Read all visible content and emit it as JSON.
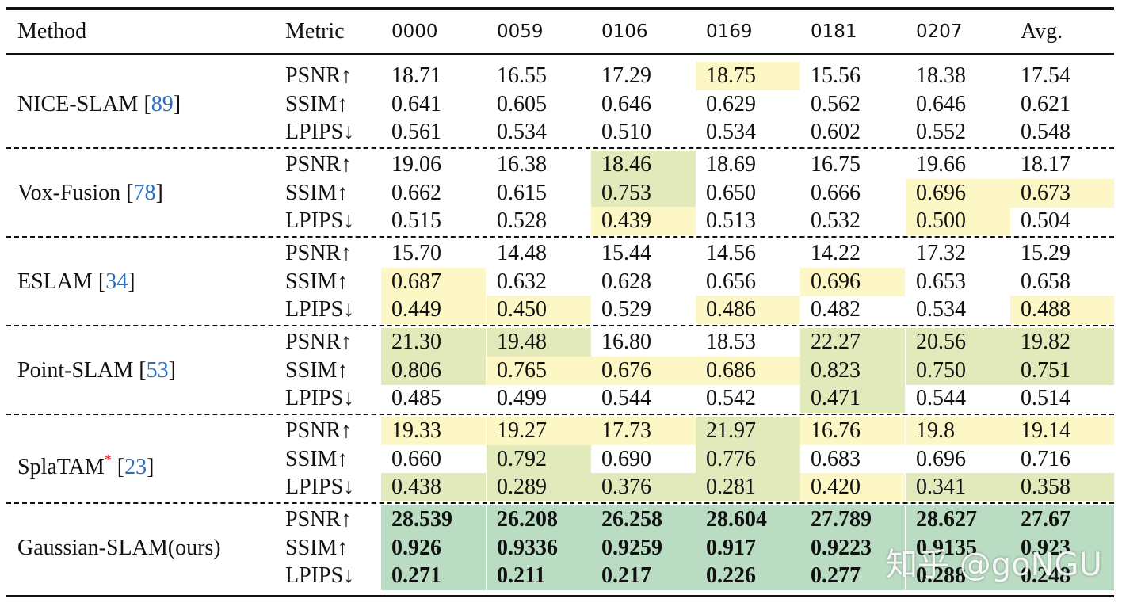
{
  "table": {
    "header": [
      "Method",
      "Metric",
      "0000",
      "0059",
      "0106",
      "0169",
      "0181",
      "0207",
      "Avg."
    ],
    "ref_open": "[",
    "ref_close": "]",
    "groups": [
      {
        "method": "NICE-SLAM",
        "ref": "89",
        "bold": false,
        "rows": [
          {
            "metric": "PSNR↑",
            "cells": [
              "18.71",
              "16.55",
              "17.29",
              "18.75",
              "15.56",
              "18.38",
              "17.54"
            ],
            "fills": [
              null,
              null,
              null,
              "#fdf7c5",
              null,
              null,
              null
            ]
          },
          {
            "metric": "SSIM↑",
            "cells": [
              "0.641",
              "0.605",
              "0.646",
              "0.629",
              "0.562",
              "0.646",
              "0.621"
            ],
            "fills": [
              null,
              null,
              null,
              null,
              null,
              null,
              null
            ]
          },
          {
            "metric": "LPIPS↓",
            "cells": [
              "0.561",
              "0.534",
              "0.510",
              "0.534",
              "0.602",
              "0.552",
              "0.548"
            ],
            "fills": [
              null,
              null,
              null,
              null,
              null,
              null,
              null
            ]
          }
        ]
      },
      {
        "method": "Vox-Fusion",
        "ref": "78",
        "bold": false,
        "rows": [
          {
            "metric": "PSNR↑",
            "cells": [
              "19.06",
              "16.38",
              "18.46",
              "18.69",
              "16.75",
              "19.66",
              "18.17"
            ],
            "fills": [
              null,
              null,
              "#e2e9ba",
              null,
              null,
              null,
              null
            ]
          },
          {
            "metric": "SSIM↑",
            "cells": [
              "0.662",
              "0.615",
              "0.753",
              "0.650",
              "0.666",
              "0.696",
              "0.673"
            ],
            "fills": [
              null,
              null,
              "#e2e9ba",
              null,
              null,
              "#fdf7c5",
              "#fdf7c5"
            ]
          },
          {
            "metric": "LPIPS↓",
            "cells": [
              "0.515",
              "0.528",
              "0.439",
              "0.513",
              "0.532",
              "0.500",
              "0.504"
            ],
            "fills": [
              null,
              null,
              "#fdf7c5",
              null,
              null,
              "#fdf7c5",
              null
            ]
          }
        ]
      },
      {
        "method": "ESLAM",
        "ref": "34",
        "bold": false,
        "rows": [
          {
            "metric": "PSNR↑",
            "cells": [
              "15.70",
              "14.48",
              "15.44",
              "14.56",
              "14.22",
              "17.32",
              "15.29"
            ],
            "fills": [
              null,
              null,
              null,
              null,
              null,
              null,
              null
            ]
          },
          {
            "metric": "SSIM↑",
            "cells": [
              "0.687",
              "0.632",
              "0.628",
              "0.656",
              "0.696",
              "0.653",
              "0.658"
            ],
            "fills": [
              "#fdf7c5",
              null,
              null,
              null,
              "#fdf7c5",
              null,
              null
            ]
          },
          {
            "metric": "LPIPS↓",
            "cells": [
              "0.449",
              "0.450",
              "0.529",
              "0.486",
              "0.482",
              "0.534",
              "0.488"
            ],
            "fills": [
              "#fdf7c5",
              "#fdf7c5",
              null,
              "#fdf7c5",
              null,
              null,
              "#fdf7c5"
            ]
          }
        ]
      },
      {
        "method": "Point-SLAM",
        "ref": "53",
        "bold": false,
        "rows": [
          {
            "metric": "PSNR↑",
            "cells": [
              "21.30",
              "19.48",
              "16.80",
              "18.53",
              "22.27",
              "20.56",
              "19.82"
            ],
            "fills": [
              "#e2e9ba",
              "#e2e9ba",
              null,
              null,
              "#e2e9ba",
              "#e2e9ba",
              "#e2e9ba"
            ]
          },
          {
            "metric": "SSIM↑",
            "cells": [
              "0.806",
              "0.765",
              "0.676",
              "0.686",
              "0.823",
              "0.750",
              "0.751"
            ],
            "fills": [
              "#e2e9ba",
              "#fdf7c5",
              "#fdf7c5",
              "#fdf7c5",
              "#e2e9ba",
              "#e2e9ba",
              "#e2e9ba"
            ]
          },
          {
            "metric": "LPIPS↓",
            "cells": [
              "0.485",
              "0.499",
              "0.544",
              "0.542",
              "0.471",
              "0.544",
              "0.514"
            ],
            "fills": [
              null,
              null,
              null,
              null,
              "#e2e9ba",
              null,
              null
            ]
          }
        ]
      },
      {
        "method": "SplaTAM",
        "mark": "*",
        "ref": "23",
        "bold": false,
        "rows": [
          {
            "metric": "PSNR↑",
            "cells": [
              "19.33",
              "19.27",
              "17.73",
              "21.97",
              "16.76",
              "19.8",
              "19.14"
            ],
            "fills": [
              "#fdf7c5",
              "#fdf7c5",
              "#fdf7c5",
              "#e2e9ba",
              "#fdf7c5",
              "#fdf7c5",
              "#fdf7c5"
            ]
          },
          {
            "metric": "SSIM↑",
            "cells": [
              "0.660",
              "0.792",
              "0.690",
              "0.776",
              "0.683",
              "0.696",
              "0.716"
            ],
            "fills": [
              null,
              "#e2e9ba",
              null,
              "#e2e9ba",
              null,
              null,
              null
            ]
          },
          {
            "metric": "LPIPS↓",
            "cells": [
              "0.438",
              "0.289",
              "0.376",
              "0.281",
              "0.420",
              "0.341",
              "0.358"
            ],
            "fills": [
              "#e2e9ba",
              "#e2e9ba",
              "#e2e9ba",
              "#e2e9ba",
              "#fdf7c5",
              "#e2e9ba",
              "#e2e9ba"
            ]
          }
        ]
      },
      {
        "method": "Gaussian-SLAM(ours)",
        "bold": true,
        "rows": [
          {
            "metric": "PSNR↑",
            "cells": [
              "28.539",
              "26.208",
              "26.258",
              "28.604",
              "27.789",
              "28.627",
              "27.67"
            ],
            "fills": [
              "#b9dcc2",
              "#b9dcc2",
              "#b9dcc2",
              "#b9dcc2",
              "#b9dcc2",
              "#b9dcc2",
              "#b9dcc2"
            ]
          },
          {
            "metric": "SSIM↑",
            "cells": [
              "0.926",
              "0.9336",
              "0.9259",
              "0.917",
              "0.9223",
              "0.9135",
              "0.923"
            ],
            "fills": [
              "#b9dcc2",
              "#b9dcc2",
              "#b9dcc2",
              "#b9dcc2",
              "#b9dcc2",
              "#b9dcc2",
              "#b9dcc2"
            ]
          },
          {
            "metric": "LPIPS↓",
            "cells": [
              "0.271",
              "0.211",
              "0.217",
              "0.226",
              "0.277",
              "0.288",
              "0.248"
            ],
            "fills": [
              "#b9dcc2",
              "#b9dcc2",
              "#b9dcc2",
              "#b9dcc2",
              "#b9dcc2",
              "#b9dcc2",
              "#b9dcc2"
            ]
          }
        ]
      }
    ]
  },
  "watermark": "知乎 @goNGU"
}
